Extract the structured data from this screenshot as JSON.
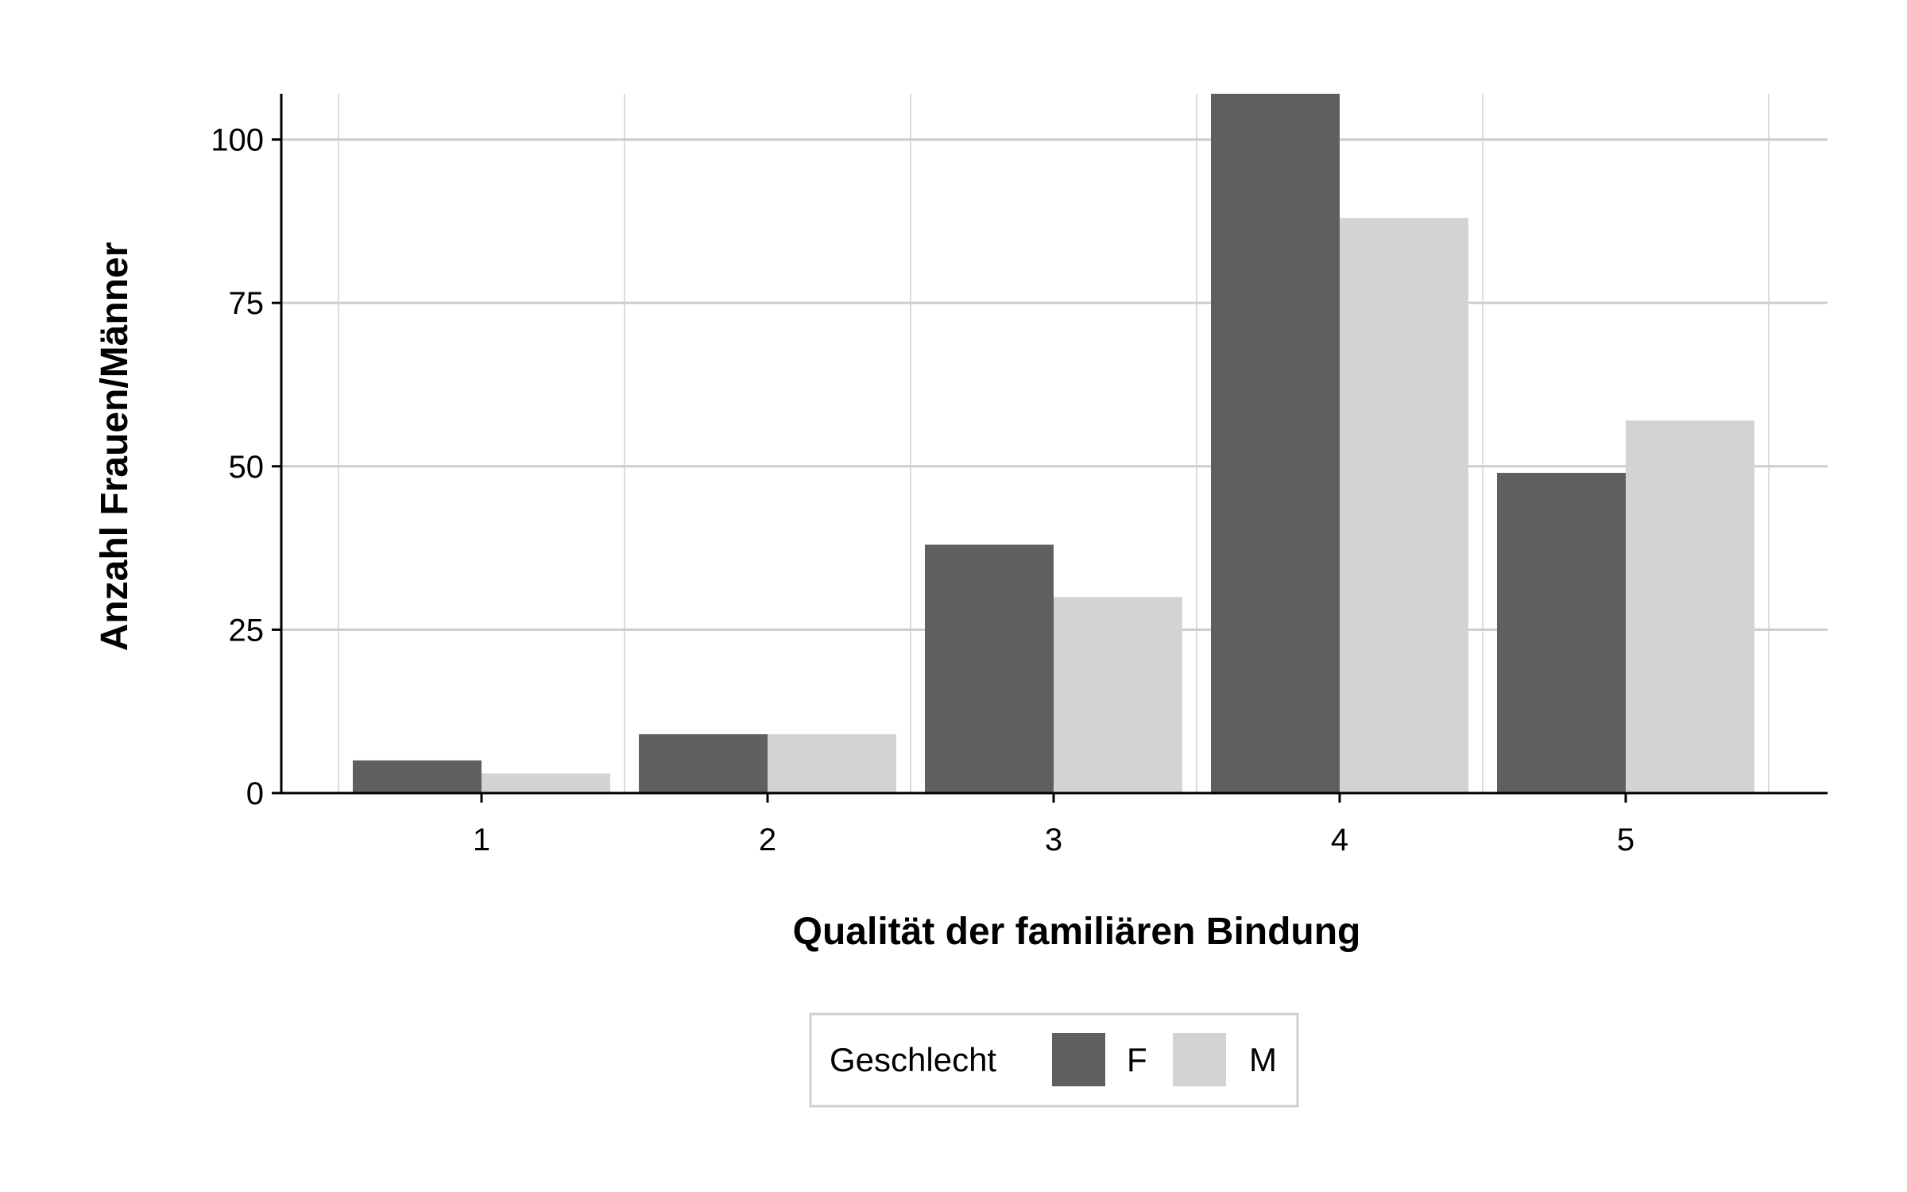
{
  "chart_data": {
    "type": "bar",
    "categories": [
      "1",
      "2",
      "3",
      "4",
      "5"
    ],
    "series": [
      {
        "name": "F",
        "values": [
          5,
          9,
          38,
          107,
          49
        ],
        "color": "#5f5f5f"
      },
      {
        "name": "M",
        "values": [
          3,
          9,
          30,
          88,
          57
        ],
        "color": "#d3d3d3"
      }
    ],
    "xlabel": "Qualität der familiären Bindung",
    "ylabel": "Anzahl Frauen/Männer",
    "y_ticks": [
      0,
      25,
      50,
      75,
      100
    ],
    "ylim": [
      0,
      107
    ],
    "grid": true,
    "legend": {
      "title": "Geschlecht",
      "position": "bottom"
    }
  }
}
